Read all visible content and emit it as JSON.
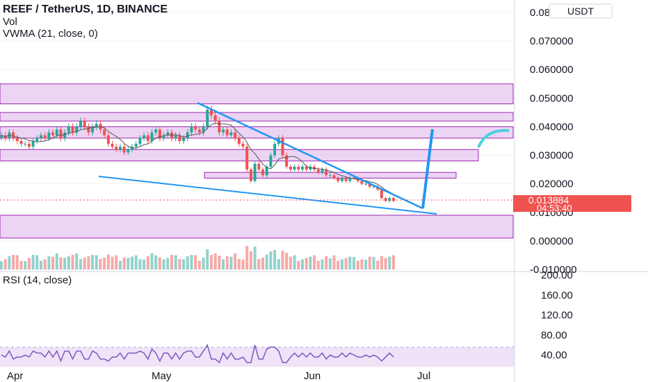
{
  "header": {
    "title": "REEF / TetherUS, 1D, BINANCE",
    "vol": "Vol",
    "vwma": "VWMA (21, close, 0)",
    "currency": "USDT"
  },
  "rsi": {
    "label": "RSI (14, close)",
    "ticks": [
      "200.00",
      "160.00",
      "120.00",
      "80.00",
      "40.00"
    ]
  },
  "price_badge": {
    "price": "0.013884",
    "countdown": "04:53:40"
  },
  "colors": {
    "up": "#26a69a",
    "down": "#ef5350",
    "zone_fill": "#e6c6f0",
    "zone_stroke": "#9c27b0",
    "trend": "#2196f3",
    "rsi_line": "#7e57c2"
  },
  "chart_data": {
    "type": "candlestick",
    "x_labels": [
      "Apr",
      "May",
      "Jun",
      "Jul"
    ],
    "y_ticks": [
      "0.080000",
      "0.070000",
      "0.060000",
      "0.050000",
      "0.040000",
      "0.030000",
      "0.020000",
      "0.010000",
      "0.000000",
      "-0.010000"
    ],
    "ylim": [
      -0.01,
      0.08
    ],
    "close_series": [
      0.037,
      0.036,
      0.038,
      0.036,
      0.035,
      0.034,
      0.034,
      0.033,
      0.035,
      0.036,
      0.037,
      0.036,
      0.038,
      0.037,
      0.039,
      0.036,
      0.038,
      0.04,
      0.038,
      0.04,
      0.042,
      0.04,
      0.038,
      0.04,
      0.041,
      0.039,
      0.037,
      0.034,
      0.033,
      0.032,
      0.033,
      0.031,
      0.032,
      0.033,
      0.034,
      0.036,
      0.037,
      0.035,
      0.038,
      0.039,
      0.036,
      0.037,
      0.038,
      0.036,
      0.037,
      0.035,
      0.036,
      0.038,
      0.04,
      0.039,
      0.038,
      0.04,
      0.046,
      0.044,
      0.042,
      0.038,
      0.039,
      0.037,
      0.038,
      0.036,
      0.034,
      0.033,
      0.025,
      0.021,
      0.027,
      0.025,
      0.023,
      0.026,
      0.03,
      0.034,
      0.036,
      0.03,
      0.026,
      0.025,
      0.026,
      0.025,
      0.026,
      0.025,
      0.026,
      0.025,
      0.024,
      0.025,
      0.023,
      0.023,
      0.022,
      0.021,
      0.022,
      0.021,
      0.022,
      0.022,
      0.021,
      0.02,
      0.02,
      0.019,
      0.019,
      0.018,
      0.015,
      0.014,
      0.015,
      0.014
    ],
    "rsi_ylim": [
      0,
      200
    ],
    "annotations": []
  }
}
